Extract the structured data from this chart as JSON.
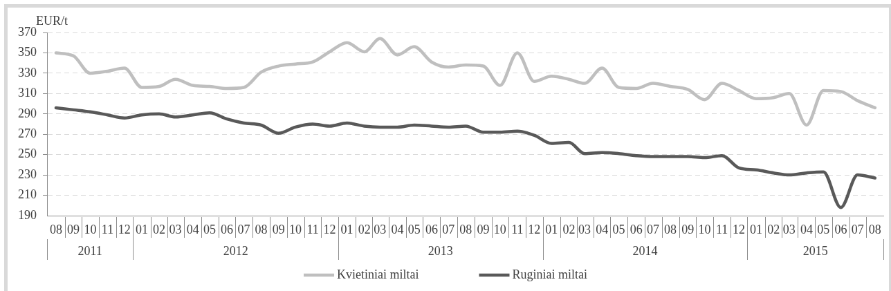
{
  "chart_data": {
    "type": "line",
    "ylabel": "EUR/t",
    "x": [
      "2011-08",
      "2011-09",
      "2011-10",
      "2011-11",
      "2011-12",
      "2012-01",
      "2012-02",
      "2012-03",
      "2012-04",
      "2012-05",
      "2012-06",
      "2012-07",
      "2012-08",
      "2012-09",
      "2012-10",
      "2012-11",
      "2012-12",
      "2013-01",
      "2013-02",
      "2013-03",
      "2013-04",
      "2013-05",
      "2013-06",
      "2013-07",
      "2013-08",
      "2013-09",
      "2013-10",
      "2013-11",
      "2013-12",
      "2014-01",
      "2014-02",
      "2014-03",
      "2014-04",
      "2014-05",
      "2014-06",
      "2014-07",
      "2014-08",
      "2014-09",
      "2014-10",
      "2014-11",
      "2014-12",
      "2015-01",
      "2015-02",
      "2015-03",
      "2015-04",
      "2015-05",
      "2015-06",
      "2015-07",
      "2015-08"
    ],
    "series": [
      {
        "name": "Kvietiniai miltai",
        "color": "#bfbfbf",
        "values": [
          350,
          347,
          330,
          332,
          335,
          316,
          317,
          324,
          318,
          317,
          315,
          316,
          331,
          337,
          339,
          341,
          351,
          360,
          351,
          364,
          348,
          356,
          341,
          336,
          338,
          337,
          318,
          350,
          322,
          327,
          324,
          320,
          335,
          316,
          315,
          320,
          317,
          314,
          304,
          320,
          313,
          305,
          306,
          310,
          279,
          313,
          312,
          303,
          296
        ]
      },
      {
        "name": "Ruginiai miltai",
        "color": "#595959",
        "values": [
          296,
          294,
          292,
          289,
          286,
          289,
          290,
          287,
          289,
          291,
          285,
          281,
          279,
          271,
          277,
          280,
          278,
          281,
          278,
          277,
          277,
          279,
          278,
          277,
          278,
          272,
          272,
          273,
          269,
          261,
          262,
          251,
          252,
          251,
          249,
          248,
          248,
          248,
          247,
          249,
          237,
          235,
          232,
          230,
          232,
          233,
          198,
          230,
          227
        ]
      }
    ],
    "xlim": [
      "2011-07-16",
      "2015-08-16"
    ],
    "xticks": [
      {
        "value": "2011-08",
        "label": "08"
      },
      {
        "value": "2011-09",
        "label": "09"
      },
      {
        "value": "2011-10",
        "label": "10"
      },
      {
        "value": "2011-11",
        "label": "11"
      },
      {
        "value": "2011-12",
        "label": "12"
      },
      {
        "value": "2012-01",
        "label": "01"
      },
      {
        "value": "2012-02",
        "label": "02"
      },
      {
        "value": "2012-03",
        "label": "03"
      },
      {
        "value": "2012-04",
        "label": "04"
      },
      {
        "value": "2012-05",
        "label": "05"
      },
      {
        "value": "2012-06",
        "label": "06"
      },
      {
        "value": "2012-07",
        "label": "07"
      },
      {
        "value": "2012-08",
        "label": "08"
      },
      {
        "value": "2012-09",
        "label": "09"
      },
      {
        "value": "2012-10",
        "label": "10"
      },
      {
        "value": "2012-11",
        "label": "11"
      },
      {
        "value": "2012-12",
        "label": "12"
      },
      {
        "value": "2013-01",
        "label": "01"
      },
      {
        "value": "2013-02",
        "label": "02"
      },
      {
        "value": "2013-03",
        "label": "03"
      },
      {
        "value": "2013-04",
        "label": "04"
      },
      {
        "value": "2013-05",
        "label": "05"
      },
      {
        "value": "2013-06",
        "label": "06"
      },
      {
        "value": "2013-07",
        "label": "07"
      },
      {
        "value": "2013-08",
        "label": "08"
      },
      {
        "value": "2013-09",
        "label": "09"
      },
      {
        "value": "2013-10",
        "label": "10"
      },
      {
        "value": "2013-11",
        "label": "11"
      },
      {
        "value": "2013-12",
        "label": "12"
      },
      {
        "value": "2014-01",
        "label": "01"
      },
      {
        "value": "2014-02",
        "label": "02"
      },
      {
        "value": "2014-03",
        "label": "03"
      },
      {
        "value": "2014-04",
        "label": "04"
      },
      {
        "value": "2014-05",
        "label": "05"
      },
      {
        "value": "2014-06",
        "label": "06"
      },
      {
        "value": "2014-07",
        "label": "07"
      },
      {
        "value": "2014-08",
        "label": "08"
      },
      {
        "value": "2014-09",
        "label": "09"
      },
      {
        "value": "2014-10",
        "label": "10"
      },
      {
        "value": "2014-11",
        "label": "11"
      },
      {
        "value": "2014-12",
        "label": "12"
      },
      {
        "value": "2015-01",
        "label": "01"
      },
      {
        "value": "2015-02",
        "label": "02"
      },
      {
        "value": "2015-03",
        "label": "03"
      },
      {
        "value": "2015-04",
        "label": "04"
      },
      {
        "value": "2015-05",
        "label": "05"
      },
      {
        "value": "2015-06",
        "label": "06"
      },
      {
        "value": "2015-07",
        "label": "07"
      },
      {
        "value": "2015-08",
        "label": "08"
      }
    ],
    "annotations": [
      "2011",
      "2012",
      "2013",
      "2014",
      "2015"
    ],
    "ylim": [
      190,
      370
    ],
    "yticks": [
      190,
      210,
      230,
      250,
      270,
      290,
      310,
      330,
      350,
      370
    ],
    "grid": "y",
    "legend": "bottom",
    "marker": "none",
    "line_style": "solid"
  }
}
